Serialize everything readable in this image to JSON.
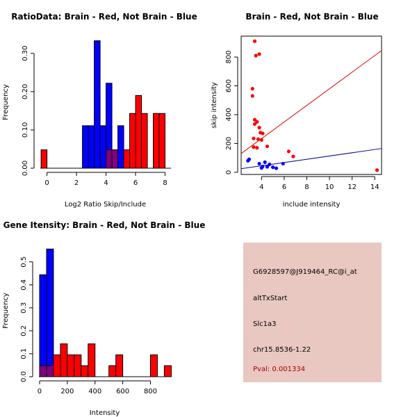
{
  "colors": {
    "red": "#ff0000",
    "blue": "#0000ff",
    "overlap": "#800080",
    "red_line": "#dd0000",
    "blue_line": "#000099",
    "info_bg": "#e8c8c0",
    "pval": "#aa0000"
  },
  "chart_data": [
    {
      "id": "ratio",
      "type": "bar",
      "title": "RatioData: Brain - Red, Not Brain - Blue",
      "xlabel": "Log2 Ratio Skip/Include",
      "ylabel": "Frequency",
      "xlim": [
        -0.5,
        8.4
      ],
      "ylim": [
        0,
        0.345
      ],
      "xticks": [
        0,
        2,
        4,
        6,
        8
      ],
      "yticks": [
        0.0,
        0.1,
        0.2,
        0.3
      ],
      "ytick_labels": [
        "0.00",
        "0.10",
        "0.20",
        "0.30"
      ],
      "bin_width": 0.4,
      "series": [
        {
          "name": "Not Brain",
          "color": "blue",
          "bins": [
            [
              2.4,
              0.111
            ],
            [
              2.8,
              0.111
            ],
            [
              3.2,
              0.333
            ],
            [
              3.6,
              0.111
            ],
            [
              4.0,
              0.222
            ],
            [
              4.4,
              0.048
            ],
            [
              4.8,
              0.111
            ]
          ]
        },
        {
          "name": "Brain",
          "color": "red",
          "bins": [
            [
              -0.4,
              0.048
            ],
            [
              4.0,
              0.048
            ],
            [
              4.4,
              0.048
            ],
            [
              5.2,
              0.048
            ],
            [
              5.6,
              0.143
            ],
            [
              6.0,
              0.19
            ],
            [
              6.4,
              0.143
            ],
            [
              7.2,
              0.143
            ],
            [
              7.6,
              0.143
            ]
          ]
        }
      ]
    },
    {
      "id": "scatter",
      "type": "scatter",
      "title": "Brain - Red, Not Brain - Blue",
      "xlabel": "include intensity",
      "ylabel": "skip intensity",
      "xlim": [
        2.2,
        14.6
      ],
      "ylim": [
        -15,
        945
      ],
      "xticks": [
        4,
        6,
        8,
        10,
        12,
        14
      ],
      "yticks": [
        0,
        200,
        400,
        600,
        800
      ],
      "series": [
        {
          "name": "Brain",
          "color": "red",
          "points": [
            [
              3.4,
              910
            ],
            [
              3.5,
              810
            ],
            [
              3.8,
              820
            ],
            [
              3.2,
              580
            ],
            [
              3.2,
              530
            ],
            [
              3.4,
              365
            ],
            [
              3.4,
              335
            ],
            [
              3.6,
              350
            ],
            [
              3.8,
              310
            ],
            [
              3.9,
              275
            ],
            [
              4.1,
              270
            ],
            [
              3.3,
              235
            ],
            [
              3.7,
              230
            ],
            [
              4.0,
              225
            ],
            [
              3.3,
              175
            ],
            [
              3.6,
              170
            ],
            [
              4.5,
              180
            ],
            [
              6.4,
              145
            ],
            [
              6.8,
              110
            ],
            [
              14.2,
              15
            ]
          ]
        },
        {
          "name": "Not Brain",
          "color": "blue",
          "points": [
            [
              2.8,
              80
            ],
            [
              2.9,
              90
            ],
            [
              3.8,
              60
            ],
            [
              4.3,
              70
            ],
            [
              4.7,
              55
            ],
            [
              4.1,
              40
            ],
            [
              4.5,
              38
            ],
            [
              5.0,
              35
            ],
            [
              5.3,
              28
            ],
            [
              5.9,
              60
            ],
            [
              4.0,
              30
            ]
          ]
        }
      ],
      "lines": [
        {
          "name": "Brain fit",
          "color": "red_line",
          "x": [
            2.2,
            14.6
          ],
          "y": [
            130,
            845
          ]
        },
        {
          "name": "Not Brain fit",
          "color": "blue_line",
          "x": [
            2.2,
            14.6
          ],
          "y": [
            25,
            165
          ]
        }
      ]
    },
    {
      "id": "gene",
      "type": "bar",
      "title": "Gene Itensity: Brain - Red, Not Brain - Blue",
      "xlabel": "Intensity",
      "ylabel": "Frequency",
      "xlim": [
        -10,
        948
      ],
      "ylim": [
        0,
        0.575
      ],
      "xticks": [
        0,
        200,
        400,
        600,
        800
      ],
      "yticks": [
        0.0,
        0.1,
        0.2,
        0.3,
        0.4,
        0.5
      ],
      "ytick_labels": [
        "0.0",
        "0.1",
        "0.2",
        "0.3",
        "0.4",
        "0.5"
      ],
      "bin_width": 50,
      "series": [
        {
          "name": "Not Brain",
          "color": "blue",
          "bins": [
            [
              0,
              0.444
            ],
            [
              50,
              0.556
            ]
          ]
        },
        {
          "name": "Brain",
          "color": "red",
          "bins": [
            [
              0,
              0.048
            ],
            [
              50,
              0.048
            ],
            [
              100,
              0.095
            ],
            [
              150,
              0.143
            ],
            [
              200,
              0.095
            ],
            [
              250,
              0.095
            ],
            [
              300,
              0.048
            ],
            [
              350,
              0.143
            ],
            [
              500,
              0.048
            ],
            [
              550,
              0.095
            ],
            [
              800,
              0.095
            ],
            [
              900,
              0.048
            ]
          ]
        }
      ]
    }
  ],
  "info": {
    "probe": "G6928597@J919464_RC@i_at",
    "event": "altTxStart",
    "gene": "Slc1a3",
    "location": "chr15.8536-1.22",
    "pval": "Pval: 0.001334"
  }
}
